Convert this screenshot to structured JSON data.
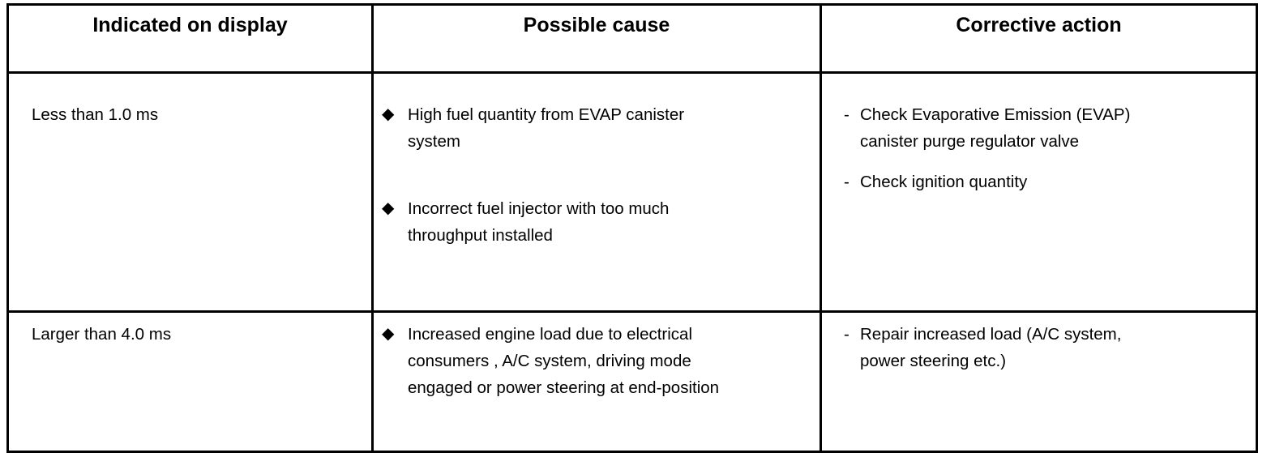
{
  "headers": [
    "Indicated on display",
    "Possible cause",
    "Corrective action"
  ],
  "rows": [
    {
      "indicated": "Less than 1.0 ms",
      "causes": [
        "High fuel quantity from EVAP canister system",
        "Incorrect fuel injector with too much throughput installed"
      ],
      "actions": [
        "Check Evaporative Emission (EVAP) canister purge regulator valve",
        "Check ignition quantity"
      ]
    },
    {
      "indicated": "Larger than 4.0 ms",
      "causes": [
        "Increased engine load due to electrical consumers , A/C system, driving mode engaged or power steering at end-position"
      ],
      "actions": [
        "Repair increased load (A/C system, power steering etc.)"
      ]
    }
  ],
  "icons": {
    "cause_bullet": "black-diamond-icon",
    "action_bullet": "dash"
  }
}
